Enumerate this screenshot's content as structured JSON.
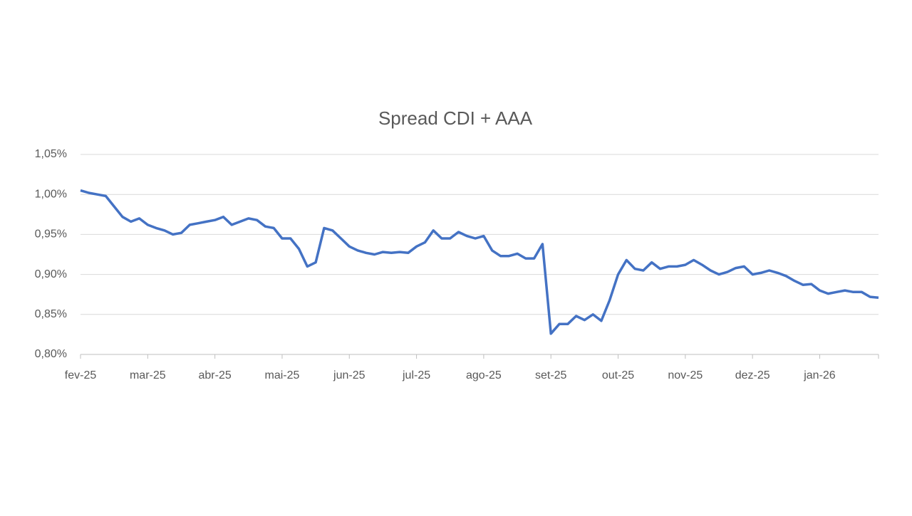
{
  "chart_data": {
    "type": "line",
    "title": "Spread CDI + AAA",
    "categories": [
      "fev-25",
      null,
      null,
      null,
      null,
      null,
      null,
      null,
      "mar-25",
      null,
      null,
      null,
      null,
      null,
      null,
      null,
      "abr-25",
      null,
      null,
      null,
      null,
      null,
      null,
      null,
      "mai-25",
      null,
      null,
      null,
      null,
      null,
      null,
      null,
      "jun-25",
      null,
      null,
      null,
      null,
      null,
      null,
      null,
      "jul-25",
      null,
      null,
      null,
      null,
      null,
      null,
      null,
      "ago-25",
      null,
      null,
      null,
      null,
      null,
      null,
      null,
      "set-25",
      null,
      null,
      null,
      null,
      null,
      null,
      null,
      "out-25",
      null,
      null,
      null,
      null,
      null,
      null,
      null,
      "nov-25",
      null,
      null,
      null,
      null,
      null,
      null,
      null,
      "dez-25",
      null,
      null,
      null,
      null,
      null,
      null,
      null,
      "jan-26",
      null,
      null,
      null,
      null,
      null,
      null,
      null
    ],
    "series": [
      {
        "name": "Spread CDI + AAA",
        "color": "#4472c4",
        "values": [
          1.005,
          1.002,
          1.0,
          0.998,
          0.985,
          0.972,
          0.966,
          0.97,
          0.962,
          0.958,
          0.955,
          0.95,
          0.952,
          0.962,
          0.964,
          0.966,
          0.968,
          0.972,
          0.962,
          0.966,
          0.97,
          0.968,
          0.96,
          0.958,
          0.945,
          0.945,
          0.932,
          0.91,
          0.915,
          0.958,
          0.955,
          0.945,
          0.935,
          0.93,
          0.927,
          0.925,
          0.928,
          0.927,
          0.928,
          0.927,
          0.935,
          0.94,
          0.955,
          0.945,
          0.945,
          0.953,
          0.948,
          0.945,
          0.948,
          0.93,
          0.923,
          0.923,
          0.926,
          0.92,
          0.92,
          0.938,
          0.826,
          0.838,
          0.838,
          0.848,
          0.843,
          0.85,
          0.842,
          0.868,
          0.9,
          0.918,
          0.907,
          0.905,
          0.915,
          0.907,
          0.91,
          0.91,
          0.912,
          0.918,
          0.912,
          0.905,
          0.9,
          0.903,
          0.908,
          0.91,
          0.9,
          0.902,
          0.905,
          0.902,
          0.898,
          0.892,
          0.887,
          0.888,
          0.88,
          0.876,
          0.878,
          0.88,
          0.878,
          0.878,
          0.872,
          0.871
        ]
      }
    ],
    "ylim": [
      0.8,
      1.05
    ],
    "yticks": [
      {
        "value": 0.8,
        "label": "0,80%"
      },
      {
        "value": 0.85,
        "label": "0,85%"
      },
      {
        "value": 0.9,
        "label": "0,90%"
      },
      {
        "value": 0.95,
        "label": "0,95%"
      },
      {
        "value": 1.0,
        "label": "1,00%"
      },
      {
        "value": 1.05,
        "label": "1,05%"
      }
    ],
    "grid": true
  }
}
